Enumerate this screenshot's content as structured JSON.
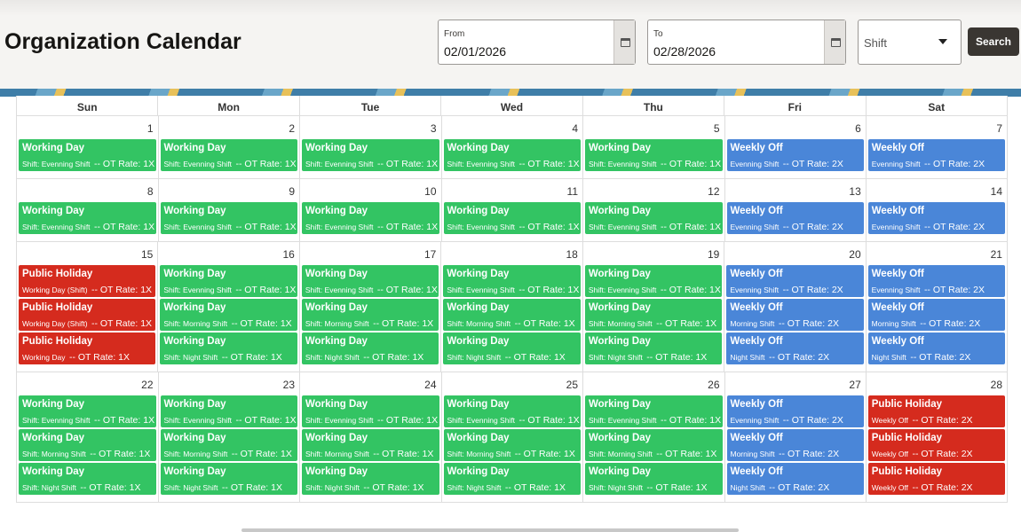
{
  "header": {
    "title": "Organization Calendar",
    "from_label": "From",
    "from_value": "02/01/2026",
    "to_label": "To",
    "to_value": "02/28/2026",
    "shift_select": "Shift",
    "search_button": "Search"
  },
  "calendar": {
    "weekdays": [
      "Sun",
      "Mon",
      "Tue",
      "Wed",
      "Thu",
      "Fri",
      "Sat"
    ],
    "weeks": [
      {
        "days": [
          {
            "day": 1,
            "events": [
              {
                "title": "Working Day",
                "shift": "Shift: Evenning Shift",
                "ot": "-- OT Rate: 1X",
                "color": "#33c463"
              }
            ]
          },
          {
            "day": 2,
            "events": [
              {
                "title": "Working Day",
                "shift": "Shift: Evenning Shift",
                "ot": "-- OT Rate: 1X",
                "color": "#33c463"
              }
            ]
          },
          {
            "day": 3,
            "events": [
              {
                "title": "Working Day",
                "shift": "Shift: Evenning Shift",
                "ot": "-- OT Rate: 1X",
                "color": "#33c463"
              }
            ]
          },
          {
            "day": 4,
            "events": [
              {
                "title": "Working Day",
                "shift": "Shift: Evenning Shift",
                "ot": "-- OT Rate: 1X",
                "color": "#33c463"
              }
            ]
          },
          {
            "day": 5,
            "events": [
              {
                "title": "Working Day",
                "shift": "Shift: Evenning Shift",
                "ot": "-- OT Rate: 1X",
                "color": "#33c463"
              }
            ]
          },
          {
            "day": 6,
            "events": [
              {
                "title": "Weekly Off",
                "shift": "Evenning Shift",
                "ot": "-- OT Rate: 2X",
                "color": "#4a86d8"
              }
            ]
          },
          {
            "day": 7,
            "events": [
              {
                "title": "Weekly Off",
                "shift": "Evenning Shift",
                "ot": "-- OT Rate: 2X",
                "color": "#4a86d8"
              }
            ]
          }
        ]
      },
      {
        "days": [
          {
            "day": 8,
            "events": [
              {
                "title": "Working Day",
                "shift": "Shift: Evenning Shift",
                "ot": "-- OT Rate: 1X",
                "color": "#33c463"
              }
            ]
          },
          {
            "day": 9,
            "events": [
              {
                "title": "Working Day",
                "shift": "Shift: Evenning Shift",
                "ot": "-- OT Rate: 1X",
                "color": "#33c463"
              }
            ]
          },
          {
            "day": 10,
            "events": [
              {
                "title": "Working Day",
                "shift": "Shift: Evenning Shift",
                "ot": "-- OT Rate: 1X",
                "color": "#33c463"
              }
            ]
          },
          {
            "day": 11,
            "events": [
              {
                "title": "Working Day",
                "shift": "Shift: Evenning Shift",
                "ot": "-- OT Rate: 1X",
                "color": "#33c463"
              }
            ]
          },
          {
            "day": 12,
            "events": [
              {
                "title": "Working Day",
                "shift": "Shift: Evenning Shift",
                "ot": "-- OT Rate: 1X",
                "color": "#33c463"
              }
            ]
          },
          {
            "day": 13,
            "events": [
              {
                "title": "Weekly Off",
                "shift": "Evenning Shift",
                "ot": "-- OT Rate: 2X",
                "color": "#4a86d8"
              }
            ]
          },
          {
            "day": 14,
            "events": [
              {
                "title": "Weekly Off",
                "shift": "Evenning Shift",
                "ot": "-- OT Rate: 2X",
                "color": "#4a86d8"
              }
            ]
          }
        ]
      },
      {
        "days": [
          {
            "day": 15,
            "events": [
              {
                "title": "Public Holiday",
                "shift": "Working Day (Shift)",
                "ot": "-- OT Rate: 1X",
                "color": "#d52b1e"
              },
              {
                "title": "Public Holiday",
                "shift": "Working Day (Shift)",
                "ot": "-- OT Rate: 1X",
                "color": "#d52b1e"
              },
              {
                "title": "Public Holiday",
                "shift": "Working Day",
                "ot": "-- OT Rate: 1X",
                "color": "#d52b1e"
              }
            ]
          },
          {
            "day": 16,
            "events": [
              {
                "title": "Working Day",
                "shift": "Shift: Evenning Shift",
                "ot": "-- OT Rate: 1X",
                "color": "#33c463"
              },
              {
                "title": "Working Day",
                "shift": "Shift: Morning Shift",
                "ot": "-- OT Rate: 1X",
                "color": "#33c463"
              },
              {
                "title": "Working Day",
                "shift": "Shift: Night Shift",
                "ot": "-- OT Rate: 1X",
                "color": "#33c463"
              }
            ]
          },
          {
            "day": 17,
            "events": [
              {
                "title": "Working Day",
                "shift": "Shift: Evenning Shift",
                "ot": "-- OT Rate: 1X",
                "color": "#33c463"
              },
              {
                "title": "Working Day",
                "shift": "Shift: Morning Shift",
                "ot": "-- OT Rate: 1X",
                "color": "#33c463"
              },
              {
                "title": "Working Day",
                "shift": "Shift: Night Shift",
                "ot": "-- OT Rate: 1X",
                "color": "#33c463"
              }
            ]
          },
          {
            "day": 18,
            "events": [
              {
                "title": "Working Day",
                "shift": "Shift: Evenning Shift",
                "ot": "-- OT Rate: 1X",
                "color": "#33c463"
              },
              {
                "title": "Working Day",
                "shift": "Shift: Morning Shift",
                "ot": "-- OT Rate: 1X",
                "color": "#33c463"
              },
              {
                "title": "Working Day",
                "shift": "Shift: Night Shift",
                "ot": "-- OT Rate: 1X",
                "color": "#33c463"
              }
            ]
          },
          {
            "day": 19,
            "events": [
              {
                "title": "Working Day",
                "shift": "Shift: Evenning Shift",
                "ot": "-- OT Rate: 1X",
                "color": "#33c463"
              },
              {
                "title": "Working Day",
                "shift": "Shift: Morning Shift",
                "ot": "-- OT Rate: 1X",
                "color": "#33c463"
              },
              {
                "title": "Working Day",
                "shift": "Shift: Night Shift",
                "ot": "-- OT Rate: 1X",
                "color": "#33c463"
              }
            ]
          },
          {
            "day": 20,
            "events": [
              {
                "title": "Weekly Off",
                "shift": "Evenning Shift",
                "ot": "-- OT Rate: 2X",
                "color": "#4a86d8"
              },
              {
                "title": "Weekly Off",
                "shift": "Morning Shift",
                "ot": "-- OT Rate: 2X",
                "color": "#4a86d8"
              },
              {
                "title": "Weekly Off",
                "shift": "Night Shift",
                "ot": "-- OT Rate: 2X",
                "color": "#4a86d8"
              }
            ]
          },
          {
            "day": 21,
            "events": [
              {
                "title": "Weekly Off",
                "shift": "Evenning Shift",
                "ot": "-- OT Rate: 2X",
                "color": "#4a86d8"
              },
              {
                "title": "Weekly Off",
                "shift": "Morning Shift",
                "ot": "-- OT Rate: 2X",
                "color": "#4a86d8"
              },
              {
                "title": "Weekly Off",
                "shift": "Night Shift",
                "ot": "-- OT Rate: 2X",
                "color": "#4a86d8"
              }
            ]
          }
        ]
      },
      {
        "days": [
          {
            "day": 22,
            "events": [
              {
                "title": "Working Day",
                "shift": "Shift: Evenning Shift",
                "ot": "-- OT Rate: 1X",
                "color": "#33c463"
              },
              {
                "title": "Working Day",
                "shift": "Shift: Morning Shift",
                "ot": "-- OT Rate: 1X",
                "color": "#33c463"
              },
              {
                "title": "Working Day",
                "shift": "Shift: Night Shift",
                "ot": "-- OT Rate: 1X",
                "color": "#33c463"
              }
            ]
          },
          {
            "day": 23,
            "events": [
              {
                "title": "Working Day",
                "shift": "Shift: Evenning Shift",
                "ot": "-- OT Rate: 1X",
                "color": "#33c463"
              },
              {
                "title": "Working Day",
                "shift": "Shift: Morning Shift",
                "ot": "-- OT Rate: 1X",
                "color": "#33c463"
              },
              {
                "title": "Working Day",
                "shift": "Shift: Night Shift",
                "ot": "-- OT Rate: 1X",
                "color": "#33c463"
              }
            ]
          },
          {
            "day": 24,
            "events": [
              {
                "title": "Working Day",
                "shift": "Shift: Evenning Shift",
                "ot": "-- OT Rate: 1X",
                "color": "#33c463"
              },
              {
                "title": "Working Day",
                "shift": "Shift: Morning Shift",
                "ot": "-- OT Rate: 1X",
                "color": "#33c463"
              },
              {
                "title": "Working Day",
                "shift": "Shift: Night Shift",
                "ot": "-- OT Rate: 1X",
                "color": "#33c463"
              }
            ]
          },
          {
            "day": 25,
            "events": [
              {
                "title": "Working Day",
                "shift": "Shift: Evenning Shift",
                "ot": "-- OT Rate: 1X",
                "color": "#33c463"
              },
              {
                "title": "Working Day",
                "shift": "Shift: Morning Shift",
                "ot": "-- OT Rate: 1X",
                "color": "#33c463"
              },
              {
                "title": "Working Day",
                "shift": "Shift: Night Shift",
                "ot": "-- OT Rate: 1X",
                "color": "#33c463"
              }
            ]
          },
          {
            "day": 26,
            "events": [
              {
                "title": "Working Day",
                "shift": "Shift: Evenning Shift",
                "ot": "-- OT Rate: 1X",
                "color": "#33c463"
              },
              {
                "title": "Working Day",
                "shift": "Shift: Morning Shift",
                "ot": "-- OT Rate: 1X",
                "color": "#33c463"
              },
              {
                "title": "Working Day",
                "shift": "Shift: Night Shift",
                "ot": "-- OT Rate: 1X",
                "color": "#33c463"
              }
            ]
          },
          {
            "day": 27,
            "events": [
              {
                "title": "Weekly Off",
                "shift": "Evenning Shift",
                "ot": "-- OT Rate: 2X",
                "color": "#4a86d8"
              },
              {
                "title": "Weekly Off",
                "shift": "Morning Shift",
                "ot": "-- OT Rate: 2X",
                "color": "#4a86d8"
              },
              {
                "title": "Weekly Off",
                "shift": "Night Shift",
                "ot": "-- OT Rate: 2X",
                "color": "#4a86d8"
              }
            ]
          },
          {
            "day": 28,
            "events": [
              {
                "title": "Public Holiday",
                "shift": "Weekly Off",
                "ot": "-- OT Rate: 2X",
                "color": "#d52b1e"
              },
              {
                "title": "Public Holiday",
                "shift": "Weekly Off",
                "ot": "-- OT Rate: 2X",
                "color": "#d52b1e"
              },
              {
                "title": "Public Holiday",
                "shift": "Weekly Off",
                "ot": "-- OT Rate: 2X",
                "color": "#d52b1e"
              }
            ]
          }
        ]
      }
    ]
  }
}
